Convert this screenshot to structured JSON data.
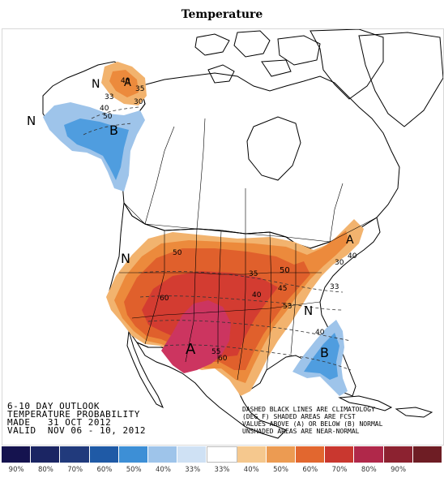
{
  "title": "Temperature",
  "outlook": {
    "line1": "6-10 DAY OUTLOOK",
    "line2": "TEMPERATURE PROBABILITY",
    "line3": "MADE   31 OCT 2012",
    "line4": "VALID  NOV 06 - 10, 2012"
  },
  "notes": {
    "line1": "DASHED BLACK LINES ARE CLIMATOLOGY",
    "line2": "(DEG F) SHADED AREAS ARE FCST",
    "line3": "VALUES ABOVE (A) OR BELOW (B) NORMAL",
    "line4": "UNSHADED AREAS ARE NEAR-NORMAL"
  },
  "map_labels": {
    "above": "A",
    "below": "B",
    "normal": "N",
    "contours": [
      "40",
      "35",
      "33",
      "30",
      "40",
      "50",
      "50",
      "40",
      "35",
      "30",
      "40",
      "33",
      "50",
      "45",
      "60",
      "55",
      "60",
      "53",
      "40"
    ]
  },
  "legend": {
    "swatches": [
      {
        "color": "#15134f",
        "label": "90%"
      },
      {
        "color": "#1b2563",
        "label": "80%"
      },
      {
        "color": "#213a7c",
        "label": "70%"
      },
      {
        "color": "#1f5aa6",
        "label": "60%"
      },
      {
        "color": "#3d8fd6",
        "label": "50%"
      },
      {
        "color": "#9ec4ea",
        "label": "40%"
      },
      {
        "color": "#cfe1f4",
        "label": "33%"
      },
      {
        "color": "#ffffff",
        "label": "33%"
      },
      {
        "color": "#f5c88e",
        "label": "40%"
      },
      {
        "color": "#ec9b52",
        "label": "50%"
      },
      {
        "color": "#e2672f",
        "label": "60%"
      },
      {
        "color": "#c9372f",
        "label": "70%"
      },
      {
        "color": "#b0284a",
        "label": "80%"
      },
      {
        "color": "#8c2230",
        "label": "90%"
      },
      {
        "color": "#6e1d24",
        "label": ""
      }
    ]
  },
  "colors": {
    "above_light": "#f2b36e",
    "above_mid": "#ec8a3c",
    "above_strong": "#e0602c",
    "above_deep": "#d33c31",
    "above_max": "#cc3560",
    "below_light": "#9ec4ea",
    "below_mid": "#4f9ddf"
  }
}
